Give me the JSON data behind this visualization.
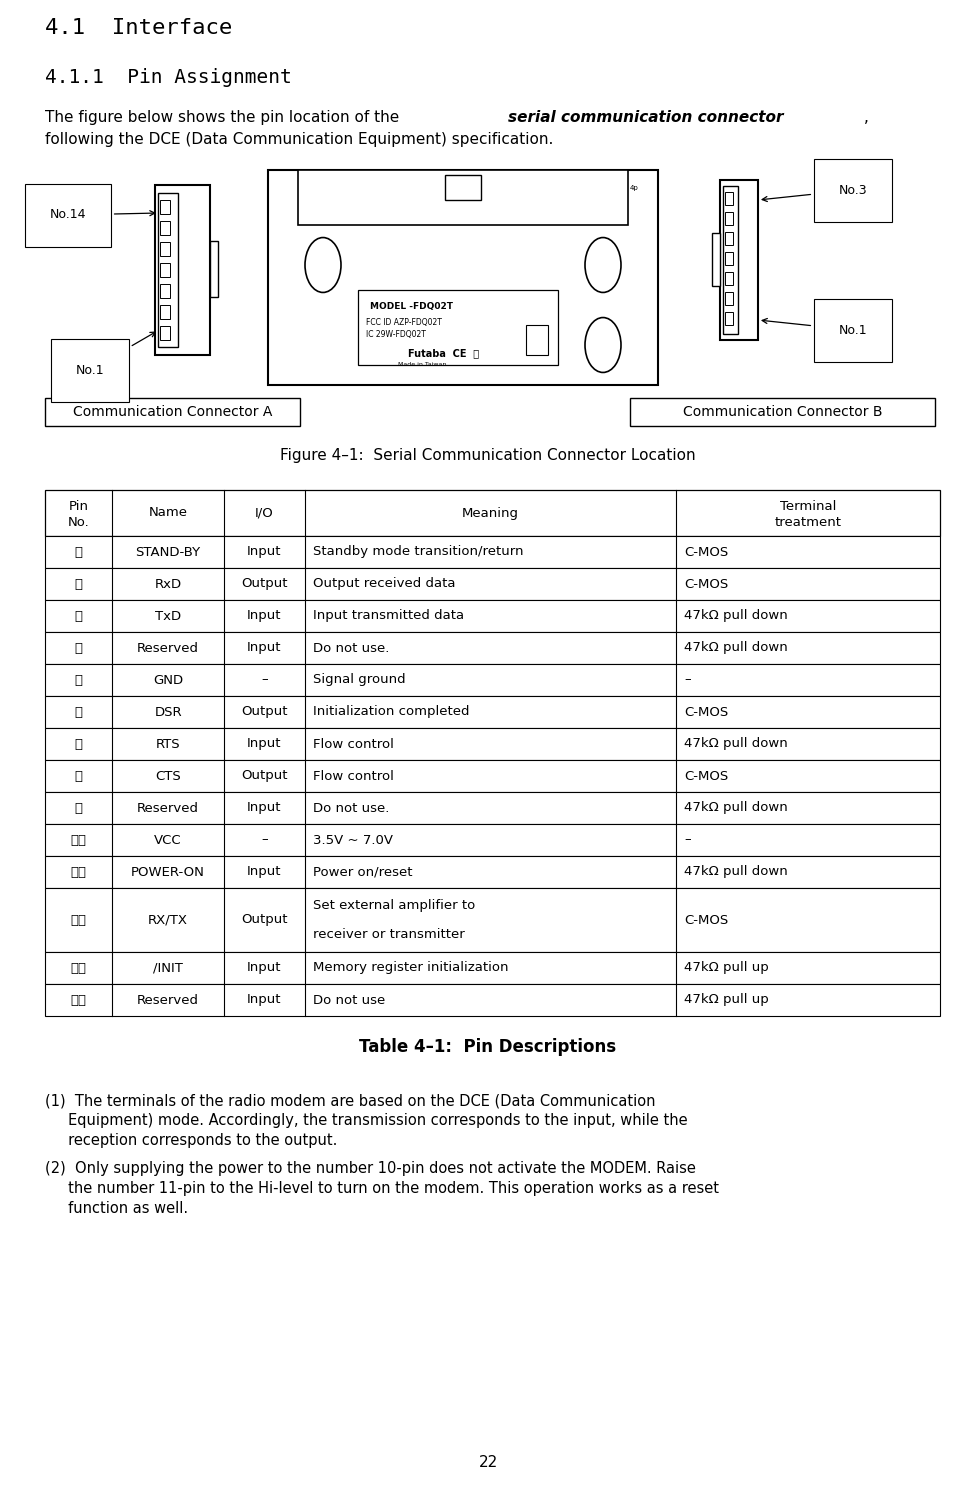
{
  "title_41": "4.1  Interface",
  "title_411": "4.1.1  Pin Assignment",
  "figure_caption": "Figure 4–1:  Serial Communication Connector Location",
  "table_caption": "Table 4–1:  Pin Descriptions",
  "table_headers": [
    "Pin\nNo.",
    "Name",
    "I/O",
    "Meaning",
    "Terminal\ntreatment"
  ],
  "table_rows": [
    [
      "１",
      "STAND-BY",
      "Input",
      "Standby mode transition/return",
      "C-MOS"
    ],
    [
      "２",
      "RxD",
      "Output",
      "Output received data",
      "C-MOS"
    ],
    [
      "３",
      "TxD",
      "Input",
      "Input transmitted data",
      "47kΩ pull down"
    ],
    [
      "４",
      "Reserved",
      "Input",
      "Do not use.",
      "47kΩ pull down"
    ],
    [
      "５",
      "GND",
      "–",
      "Signal ground",
      "–"
    ],
    [
      "６",
      "DSR",
      "Output",
      "Initialization completed",
      "C-MOS"
    ],
    [
      "７",
      "RTS",
      "Input",
      "Flow control",
      "47kΩ pull down"
    ],
    [
      "８",
      "CTS",
      "Output",
      "Flow control",
      "C-MOS"
    ],
    [
      "９",
      "Reserved",
      "Input",
      "Do not use.",
      "47kΩ pull down"
    ],
    [
      "１０",
      "VCC",
      "–",
      "3.5V ~ 7.0V",
      "–"
    ],
    [
      "１１",
      "POWER-ON",
      "Input",
      "Power on/reset",
      "47kΩ pull down"
    ],
    [
      "１２",
      "RX/TX",
      "Output",
      "Set external amplifier to\nreceiver or transmitter",
      "C-MOS"
    ],
    [
      "１３",
      "/INIT",
      "Input",
      "Memory register initialization",
      "47kΩ pull up"
    ],
    [
      "１４",
      "Reserved",
      "Input",
      "Do not use",
      "47kΩ pull up"
    ]
  ],
  "note1_lines": [
    "(1)  The terminals of the radio modem are based on the DCE (Data Communication",
    "     Equipment) mode. Accordingly, the transmission corresponds to the input, while the",
    "     reception corresponds to the output."
  ],
  "note2_lines": [
    "(2)  Only supplying the power to the number 10-pin does not activate the MODEM. Raise",
    "     the number 11-pin to the Hi-level to turn on the modem. This operation works as a reset",
    "     function as well."
  ],
  "page_number": "22",
  "bg_color": "#ffffff",
  "text_color": "#000000"
}
